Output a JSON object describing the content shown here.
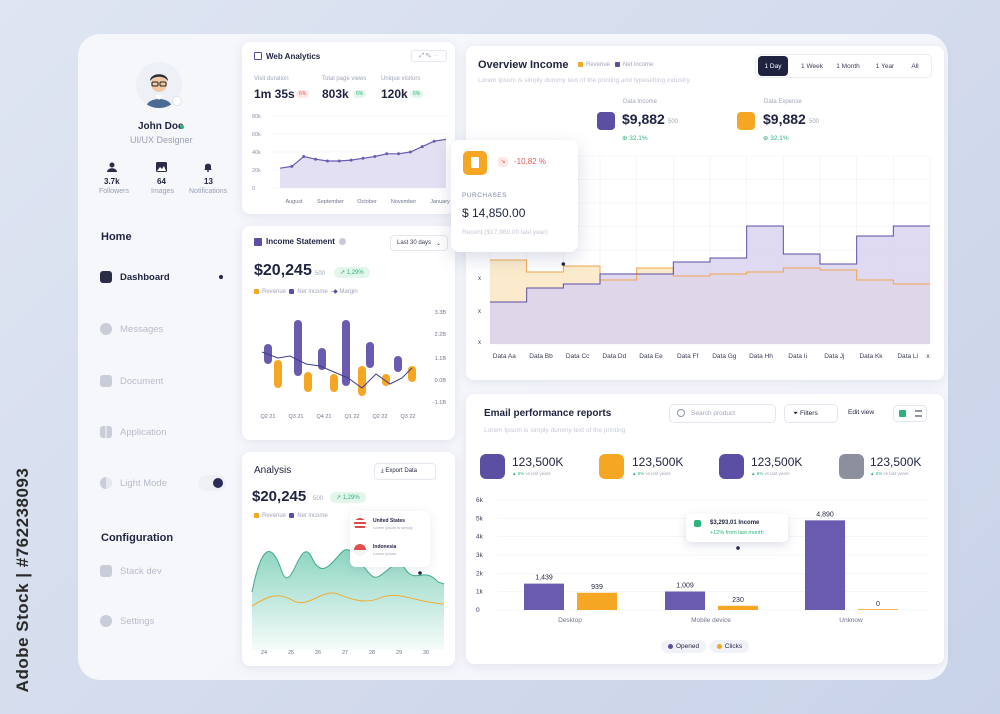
{
  "watermark": "Adobe Stock | #762238093",
  "profile": {
    "name": "John Doe",
    "role": "UI/UX Designer",
    "stats": [
      {
        "value": "3.7k",
        "label": "Followers"
      },
      {
        "value": "64",
        "label": "Images"
      },
      {
        "value": "13",
        "label": "Notifications"
      }
    ]
  },
  "sidebar": {
    "home_title": "Home",
    "items": [
      {
        "label": "Dashboard",
        "icon": "home-icon"
      },
      {
        "label": "Messages",
        "icon": "message-icon"
      },
      {
        "label": "Document",
        "icon": "document-icon"
      },
      {
        "label": "Application",
        "icon": "grid-icon"
      },
      {
        "label": "Light Mode",
        "icon": "contrast-icon"
      }
    ],
    "config_title": "Configuration",
    "config_items": [
      {
        "label": "Stack dev",
        "icon": "layers-icon"
      },
      {
        "label": "Settings",
        "icon": "gear-icon"
      }
    ]
  },
  "web_analytics": {
    "title": "Web Analytics",
    "metrics": [
      {
        "label": "Visit duration",
        "value": "1m 35s",
        "badge": "6%",
        "trend": "down"
      },
      {
        "label": "Total page views",
        "value": "803k",
        "badge": "6%",
        "trend": "up"
      },
      {
        "label": "Unique visitors",
        "value": "120k",
        "badge": "6%",
        "trend": "up"
      }
    ],
    "chart_data": {
      "type": "area",
      "x": [
        "August",
        "September",
        "October",
        "November",
        "January"
      ],
      "yticks": [
        "80k",
        "60k",
        "40k",
        "20k",
        "0"
      ],
      "points": [
        22,
        24,
        35,
        32,
        30,
        30,
        31,
        33,
        35,
        38,
        38,
        40,
        46,
        52,
        54
      ],
      "ylim": [
        0,
        80
      ]
    }
  },
  "income_statement": {
    "title": "Income Statement",
    "range": "Last 30 days",
    "value": "$20,245",
    "suffix": "500",
    "change": "1,29%",
    "legend": [
      "Revenue",
      "Net income",
      "Margin"
    ],
    "chart_data": {
      "type": "bar",
      "categories": [
        "Q2 21",
        "Q3 21",
        "Q4 21",
        "Q1 22",
        "Q2 22",
        "Q3 22"
      ],
      "yticks": [
        "3.3B",
        "2.2B",
        "1.1B",
        "0.0B",
        "-1.1B"
      ]
    }
  },
  "analysis": {
    "title": "Analysis",
    "export_label": "Export Data",
    "value": "$20,245",
    "suffix": "500",
    "change": "1,29%",
    "legend": [
      "Revenue",
      "Net income"
    ],
    "tooltip": [
      {
        "country": "United States",
        "sub": "Lorem ipsum is simply"
      },
      {
        "country": "Indonesia",
        "sub": "Lorem ipsum"
      }
    ],
    "chart_data": {
      "type": "area",
      "x": [
        "24",
        "25",
        "26",
        "27",
        "28",
        "29",
        "30"
      ]
    }
  },
  "overview": {
    "title": "Overview Income",
    "legend": [
      "Revenue",
      "Net income"
    ],
    "subtitle": "Lorem Ipsum is simply dummy text of the printing and typesetting industry.",
    "ranges": [
      "1 Day",
      "1 Week",
      "1 Month",
      "1 Year",
      "All"
    ],
    "income": {
      "label": "Data Income",
      "value": "$9,882",
      "suffix": "500",
      "pct": "32.1%"
    },
    "expense": {
      "label": "Data Expense",
      "value": "$9,882",
      "suffix": "500",
      "pct": "32.1%"
    },
    "popup": {
      "change": "-10,82 %",
      "label": "PURCHASES",
      "value": "$ 14,850.00",
      "recent": "Recent ($17,980.00 last year)"
    },
    "chart_data": {
      "type": "area",
      "categories": [
        "Data Aa",
        "Data Bb",
        "Data Cc",
        "Data Dd",
        "Data Ee",
        "Data Ff",
        "Data Gg",
        "Data Hh",
        "Data Ii",
        "Data Jj",
        "Data Kk",
        "Data Ll"
      ],
      "yticks": [
        "x",
        "x",
        "x"
      ],
      "x_end": "x"
    }
  },
  "email": {
    "title": "Email performance reports",
    "subtitle": "Lorem Ipsum is simply dummy text of the printing",
    "search_placeholder": "Search product",
    "filters_label": "Filters",
    "edit_view": "Edit view",
    "stats": [
      {
        "value": "123,500K",
        "pct": "6%",
        "note": "vs last years"
      },
      {
        "value": "123,500K",
        "pct": "6%",
        "note": "vs last years"
      },
      {
        "value": "123,500K",
        "pct": "6%",
        "note": "vs last years"
      },
      {
        "value": "123,500K",
        "pct": "6%",
        "note": "vs last years"
      }
    ],
    "tooltip": {
      "value": "$3,293.01 Income",
      "note": "+12% from last month"
    },
    "legend": [
      "Opened",
      "Clicks"
    ],
    "chart_data": {
      "type": "bar",
      "categories": [
        "Desktop",
        "Mobile device",
        "Unknow"
      ],
      "series": [
        {
          "name": "Opened",
          "values": [
            1439,
            1009,
            4890
          ]
        },
        {
          "name": "Clicks",
          "values": [
            939,
            230,
            0
          ]
        }
      ],
      "yticks": [
        "6k",
        "5k",
        "4k",
        "3k",
        "2k",
        "1k",
        "0"
      ],
      "ylim": [
        0,
        6000
      ]
    }
  }
}
